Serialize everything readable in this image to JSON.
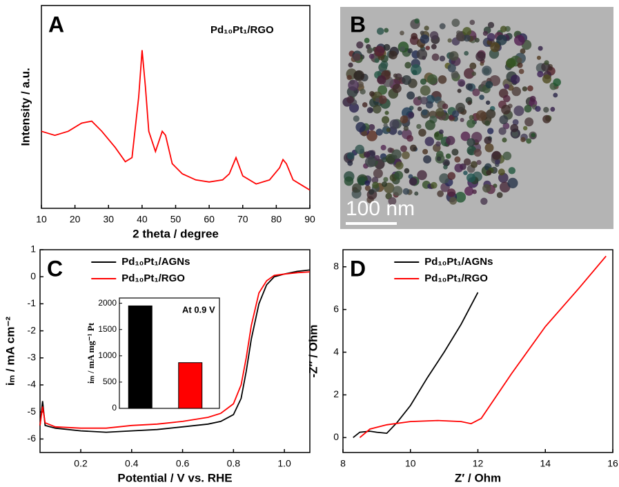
{
  "chart_data": [
    {
      "type": "line",
      "panel_label": "A",
      "annotation": "Pd₁₀Pt₁/RGO",
      "xlabel": "2 theta / degree",
      "ylabel": "Intensity / a.u.",
      "xlim": [
        10,
        90
      ],
      "xticks": [
        10,
        20,
        30,
        40,
        50,
        60,
        70,
        80,
        90
      ],
      "ylim": [
        0,
        100
      ],
      "x": [
        10,
        14,
        18,
        22,
        25,
        28,
        32,
        35,
        37,
        39,
        40,
        41,
        42,
        44,
        46,
        47,
        49,
        52,
        56,
        60,
        64,
        66,
        68,
        70,
        74,
        78,
        81,
        82,
        83,
        85,
        88,
        90
      ],
      "series": [
        {
          "color": "#ff0000",
          "values": [
            38,
            36,
            38,
            42,
            43,
            38,
            30,
            23,
            25,
            55,
            78,
            60,
            38,
            28,
            38,
            36,
            22,
            17,
            14,
            13,
            14,
            17,
            25,
            16,
            12,
            14,
            20,
            24,
            22,
            14,
            11,
            9
          ]
        }
      ]
    },
    {
      "type": "image",
      "panel_label": "B",
      "scale_bar": "100 nm"
    },
    {
      "type": "line",
      "panel_label": "C",
      "xlabel": "Potential / V vs. RHE",
      "ylabel": "iₘ / mA cm⁻²",
      "xlim": [
        0.04,
        1.1
      ],
      "xticks": [
        0.2,
        0.4,
        0.6,
        0.8,
        {
          "value": 1,
          "label": "1.0"
        }
      ],
      "ylim": [
        -6.5,
        1
      ],
      "yticks": [
        -6,
        -5,
        -4,
        -3,
        -2,
        -1,
        0,
        1
      ],
      "x": [
        0.04,
        0.05,
        0.06,
        0.1,
        0.2,
        0.3,
        0.4,
        0.5,
        0.6,
        0.7,
        0.75,
        0.8,
        0.83,
        0.85,
        0.87,
        0.9,
        0.93,
        0.96,
        1.0,
        1.05,
        1.1
      ],
      "series": [
        {
          "name": "Pd₁₀Pt₁/AGNs",
          "color": "#000000",
          "values": [
            -5.5,
            -4.6,
            -5.5,
            -5.6,
            -5.7,
            -5.75,
            -5.7,
            -5.65,
            -5.55,
            -5.45,
            -5.35,
            -5.1,
            -4.5,
            -3.5,
            -2.3,
            -1.0,
            -0.3,
            0.0,
            0.1,
            0.2,
            0.25
          ]
        },
        {
          "name": "Pd₁₀Pt₁/RGO",
          "color": "#ff0000",
          "values": [
            -5.5,
            -4.8,
            -5.4,
            -5.55,
            -5.6,
            -5.6,
            -5.5,
            -5.45,
            -5.35,
            -5.2,
            -5.05,
            -4.7,
            -4.0,
            -3.0,
            -1.8,
            -0.6,
            -0.15,
            0.05,
            0.1,
            0.15,
            0.18
          ]
        }
      ]
    },
    {
      "type": "bar",
      "annotation": "At 0.9 V",
      "ylabel": "iₘ / mA mg⁻¹ Pt",
      "categories": [
        null,
        null
      ],
      "values": [
        1950,
        870
      ],
      "colors": [
        "#000000",
        "#ff0000"
      ],
      "ylim": [
        0,
        2100
      ],
      "yticks": [
        0,
        500,
        1000,
        1500,
        2000
      ]
    },
    {
      "type": "line",
      "panel_label": "D",
      "xlabel": "Z′ / Ohm",
      "ylabel": "-Z″ / Ohm",
      "xlim": [
        8,
        16
      ],
      "xticks": [
        8,
        10,
        12,
        14,
        16
      ],
      "ylim": [
        -0.7,
        8.8
      ],
      "yticks": [
        0,
        2,
        4,
        6,
        8
      ],
      "series": [
        {
          "name": "Pd₁₀Pt₁/AGNs",
          "color": "#000000",
          "x": [
            8.3,
            8.5,
            8.8,
            9.0,
            9.3,
            9.6,
            10,
            10.5,
            11,
            11.5,
            12
          ],
          "values": [
            0,
            0.25,
            0.3,
            0.25,
            0.2,
            0.7,
            1.5,
            2.8,
            4.0,
            5.3,
            6.8
          ]
        },
        {
          "name": "Pd₁₀Pt₁/RGO",
          "color": "#ff0000",
          "x": [
            8.5,
            8.8,
            9.3,
            10,
            10.8,
            11.5,
            11.8,
            12.1,
            13,
            14,
            15,
            15.8
          ],
          "values": [
            0,
            0.4,
            0.6,
            0.75,
            0.8,
            0.75,
            0.65,
            0.9,
            3.0,
            5.2,
            7.0,
            8.5
          ]
        }
      ]
    }
  ]
}
